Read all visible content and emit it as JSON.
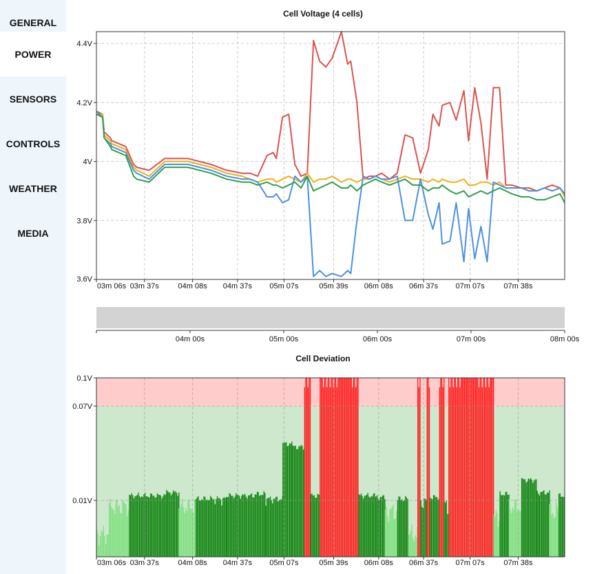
{
  "nav": {
    "items": [
      {
        "label": "GENERAL"
      },
      {
        "label": "POWER"
      },
      {
        "label": "SENSORS"
      },
      {
        "label": "CONTROLS"
      },
      {
        "label": "WEATHER"
      },
      {
        "label": "MEDIA"
      }
    ],
    "active_index": 1
  },
  "colors": {
    "cell1": "#d9534f",
    "cell2": "#f0ad1a",
    "cell3": "#4a90e2",
    "cell4": "#2e9e4f",
    "dev_ok_dark": "#0a800a",
    "dev_ok_light": "#7ee07e",
    "dev_bad": "#ff1a1a",
    "band_ok": "#cde8cd",
    "band_bad": "#ffcccc",
    "navigator_fill": "#d3d3d3"
  },
  "chart_data": [
    {
      "type": "line",
      "title": "Cell Voltage (4 cells)",
      "x_ticks": [
        "03m 06s",
        "03m 37s",
        "04m 08s",
        "04m 37s",
        "05m 07s",
        "05m 39s",
        "06m 08s",
        "06m 37s",
        "07m 07s",
        "07m 38s"
      ],
      "x_tick_times": [
        186,
        217,
        248,
        277,
        307,
        339,
        368,
        397,
        427,
        458
      ],
      "x_range": [
        186,
        488
      ],
      "y_ticks": [
        "4.4V",
        "4.2V",
        "4V",
        "3.8V",
        "3.6V"
      ],
      "y_tick_values": [
        4.4,
        4.2,
        4.0,
        3.8,
        3.6
      ],
      "ylim": [
        3.6,
        4.44
      ],
      "grid": true,
      "series": [
        {
          "x": [
            186,
            190,
            191,
            195,
            196,
            205,
            210,
            212,
            220,
            230,
            245,
            260,
            270,
            280,
            285,
            290,
            296,
            300,
            302,
            306,
            310,
            314,
            318,
            322,
            326,
            330,
            334,
            338,
            344,
            348,
            350,
            354,
            358,
            362,
            366,
            370,
            375,
            380,
            385,
            390,
            395,
            400,
            403,
            407,
            409,
            414,
            418,
            423,
            426,
            430,
            434,
            438,
            442,
            446,
            450,
            454,
            460,
            465,
            470,
            475,
            480,
            485,
            488
          ],
          "y": [
            4.17,
            4.16,
            4.1,
            4.08,
            4.07,
            4.05,
            3.99,
            3.98,
            3.97,
            4.01,
            4.01,
            3.99,
            3.97,
            3.96,
            3.96,
            3.95,
            4.02,
            4.03,
            4.01,
            4.15,
            4.16,
            3.99,
            3.95,
            3.96,
            4.41,
            4.34,
            4.32,
            4.35,
            4.44,
            4.33,
            4.34,
            4.2,
            3.94,
            3.95,
            3.95,
            3.96,
            3.94,
            3.96,
            4.09,
            4.08,
            3.96,
            4.04,
            4.16,
            4.12,
            4.19,
            4.2,
            4.14,
            4.24,
            4.07,
            4.25,
            4.13,
            3.94,
            4.25,
            4.25,
            3.92,
            3.92,
            3.91,
            3.91,
            3.9,
            3.91,
            3.92,
            3.91,
            3.89
          ]
        },
        {
          "x": [
            186,
            190,
            191,
            195,
            196,
            205,
            210,
            212,
            220,
            230,
            245,
            260,
            270,
            280,
            285,
            290,
            296,
            300,
            302,
            306,
            310,
            314,
            318,
            322,
            326,
            330,
            334,
            338,
            344,
            348,
            350,
            354,
            358,
            362,
            366,
            370,
            375,
            380,
            385,
            390,
            395,
            400,
            403,
            407,
            409,
            414,
            418,
            423,
            426,
            430,
            434,
            438,
            442,
            446,
            450,
            454,
            460,
            465,
            470,
            475,
            480,
            485,
            488
          ],
          "y": [
            4.16,
            4.16,
            4.09,
            4.07,
            4.06,
            4.04,
            3.98,
            3.97,
            3.95,
            4.0,
            4.0,
            3.98,
            3.96,
            3.95,
            3.94,
            3.93,
            3.94,
            3.94,
            3.93,
            3.94,
            3.95,
            3.94,
            3.93,
            3.96,
            3.93,
            3.94,
            3.94,
            3.95,
            3.93,
            3.94,
            3.94,
            3.93,
            3.94,
            3.94,
            3.95,
            3.94,
            3.93,
            3.94,
            3.95,
            3.94,
            3.94,
            3.93,
            3.94,
            3.93,
            3.94,
            3.93,
            3.93,
            3.94,
            3.92,
            3.92,
            3.93,
            3.93,
            3.92,
            3.93,
            3.91,
            3.91,
            3.91,
            3.9,
            3.9,
            3.91,
            3.9,
            3.91,
            3.88
          ]
        },
        {
          "x": [
            186,
            190,
            191,
            195,
            196,
            205,
            210,
            212,
            220,
            230,
            245,
            260,
            270,
            280,
            285,
            290,
            296,
            300,
            302,
            306,
            310,
            314,
            318,
            322,
            326,
            330,
            334,
            338,
            344,
            348,
            350,
            354,
            358,
            362,
            366,
            370,
            375,
            380,
            385,
            390,
            395,
            400,
            403,
            407,
            409,
            414,
            418,
            423,
            426,
            430,
            434,
            438,
            442,
            446,
            450,
            454,
            460,
            465,
            470,
            475,
            480,
            485,
            488
          ],
          "y": [
            4.17,
            4.15,
            4.08,
            4.06,
            4.05,
            4.03,
            3.97,
            3.96,
            3.94,
            3.99,
            3.99,
            3.97,
            3.95,
            3.94,
            3.94,
            3.93,
            3.88,
            3.88,
            3.89,
            3.86,
            3.87,
            3.95,
            3.93,
            3.95,
            3.61,
            3.63,
            3.61,
            3.62,
            3.61,
            3.63,
            3.62,
            3.8,
            3.95,
            3.94,
            3.95,
            3.94,
            3.94,
            3.95,
            3.8,
            3.8,
            3.94,
            3.82,
            3.77,
            3.86,
            3.72,
            3.73,
            3.86,
            3.66,
            3.84,
            3.67,
            3.78,
            3.66,
            3.93,
            3.92,
            3.91,
            3.91,
            3.91,
            3.9,
            3.9,
            3.91,
            3.9,
            3.91,
            3.89
          ]
        },
        {
          "x": [
            186,
            190,
            191,
            195,
            196,
            205,
            210,
            212,
            220,
            230,
            245,
            260,
            270,
            280,
            285,
            290,
            296,
            300,
            302,
            306,
            310,
            314,
            318,
            322,
            326,
            330,
            334,
            338,
            344,
            348,
            350,
            354,
            358,
            362,
            366,
            370,
            375,
            380,
            385,
            390,
            395,
            400,
            403,
            407,
            409,
            414,
            418,
            423,
            426,
            430,
            434,
            438,
            442,
            446,
            450,
            454,
            460,
            465,
            470,
            475,
            480,
            485,
            488
          ],
          "y": [
            4.16,
            4.15,
            4.08,
            4.05,
            4.04,
            4.02,
            3.95,
            3.94,
            3.93,
            3.98,
            3.98,
            3.96,
            3.94,
            3.93,
            3.93,
            3.92,
            3.93,
            3.92,
            3.92,
            3.91,
            3.92,
            3.93,
            3.91,
            3.95,
            3.9,
            3.91,
            3.92,
            3.93,
            3.91,
            3.91,
            3.92,
            3.9,
            3.92,
            3.93,
            3.94,
            3.93,
            3.92,
            3.93,
            3.94,
            3.92,
            3.92,
            3.9,
            3.91,
            3.91,
            3.92,
            3.9,
            3.89,
            3.9,
            3.88,
            3.89,
            3.9,
            3.89,
            3.9,
            3.91,
            3.9,
            3.89,
            3.88,
            3.88,
            3.87,
            3.87,
            3.88,
            3.89,
            3.86
          ]
        }
      ]
    },
    {
      "type": "area",
      "x_ticks": [
        "04m 00s",
        "05m 00s",
        "06m 00s",
        "07m 00s",
        "08m 00s"
      ],
      "x_tick_times": [
        240,
        300,
        360,
        420,
        480
      ],
      "x_range": [
        180,
        480
      ],
      "selected_range": [
        186,
        488
      ]
    },
    {
      "type": "bar",
      "title": "Cell Deviation",
      "x_ticks": [
        "03m 06s",
        "03m 37s",
        "04m 08s",
        "04m 37s",
        "05m 07s",
        "05m 39s",
        "06m 08s",
        "06m 37s",
        "07m 07s",
        "07m 38s"
      ],
      "x_tick_times": [
        186,
        217,
        248,
        277,
        307,
        339,
        368,
        397,
        427,
        458
      ],
      "x_range": [
        186,
        488
      ],
      "y_ticks": [
        "0.1V",
        "0.07V",
        "0.01V"
      ],
      "y_tick_values": [
        0.1,
        0.07,
        0.01
      ],
      "ylim": [
        0,
        0.1
      ],
      "threshold": 0.07,
      "grid": true,
      "segments": [
        {
          "x0": 186,
          "x1": 194,
          "y": 0.004,
          "status": "ok-light"
        },
        {
          "x0": 194,
          "x1": 207,
          "y": 0.009,
          "status": "ok-light"
        },
        {
          "x0": 207,
          "x1": 231,
          "y": 0.013,
          "status": "ok"
        },
        {
          "x0": 231,
          "x1": 239,
          "y": 0.015,
          "status": "ok"
        },
        {
          "x0": 239,
          "x1": 250,
          "y": 0.009,
          "status": "ok-light"
        },
        {
          "x0": 250,
          "x1": 270,
          "y": 0.011,
          "status": "ok"
        },
        {
          "x0": 270,
          "x1": 288,
          "y": 0.013,
          "status": "ok"
        },
        {
          "x0": 288,
          "x1": 295,
          "y": 0.014,
          "status": "ok"
        },
        {
          "x0": 295,
          "x1": 306,
          "y": 0.011,
          "status": "ok"
        },
        {
          "x0": 306,
          "x1": 312,
          "y": 0.046,
          "status": "ok"
        },
        {
          "x0": 312,
          "x1": 320,
          "y": 0.044,
          "status": "ok"
        },
        {
          "x0": 320,
          "x1": 324,
          "y": 0.1,
          "status": "bad"
        },
        {
          "x0": 324,
          "x1": 330,
          "y": 0.013,
          "status": "ok"
        },
        {
          "x0": 330,
          "x1": 355,
          "y": 0.1,
          "status": "bad"
        },
        {
          "x0": 355,
          "x1": 366,
          "y": 0.013,
          "status": "ok"
        },
        {
          "x0": 366,
          "x1": 372,
          "y": 0.012,
          "status": "ok"
        },
        {
          "x0": 372,
          "x1": 380,
          "y": 0.008,
          "status": "ok-light"
        },
        {
          "x0": 380,
          "x1": 387,
          "y": 0.011,
          "status": "ok"
        },
        {
          "x0": 387,
          "x1": 393,
          "y": 0.004,
          "status": "ok-light"
        },
        {
          "x0": 393,
          "x1": 395,
          "y": 0.1,
          "status": "bad"
        },
        {
          "x0": 395,
          "x1": 399,
          "y": 0.01,
          "status": "ok"
        },
        {
          "x0": 399,
          "x1": 401,
          "y": 0.1,
          "status": "bad"
        },
        {
          "x0": 401,
          "x1": 407,
          "y": 0.012,
          "status": "ok"
        },
        {
          "x0": 407,
          "x1": 410,
          "y": 0.1,
          "status": "bad"
        },
        {
          "x0": 410,
          "x1": 413,
          "y": 0.009,
          "status": "ok"
        },
        {
          "x0": 413,
          "x1": 442,
          "y": 0.1,
          "status": "bad"
        },
        {
          "x0": 442,
          "x1": 446,
          "y": 0.007,
          "status": "ok-light"
        },
        {
          "x0": 446,
          "x1": 452,
          "y": 0.014,
          "status": "ok"
        },
        {
          "x0": 452,
          "x1": 460,
          "y": 0.009,
          "status": "ok-light"
        },
        {
          "x0": 460,
          "x1": 470,
          "y": 0.023,
          "status": "ok"
        },
        {
          "x0": 470,
          "x1": 478,
          "y": 0.015,
          "status": "ok"
        },
        {
          "x0": 478,
          "x1": 484,
          "y": 0.008,
          "status": "ok-light"
        },
        {
          "x0": 484,
          "x1": 488,
          "y": 0.013,
          "status": "ok"
        }
      ]
    }
  ]
}
